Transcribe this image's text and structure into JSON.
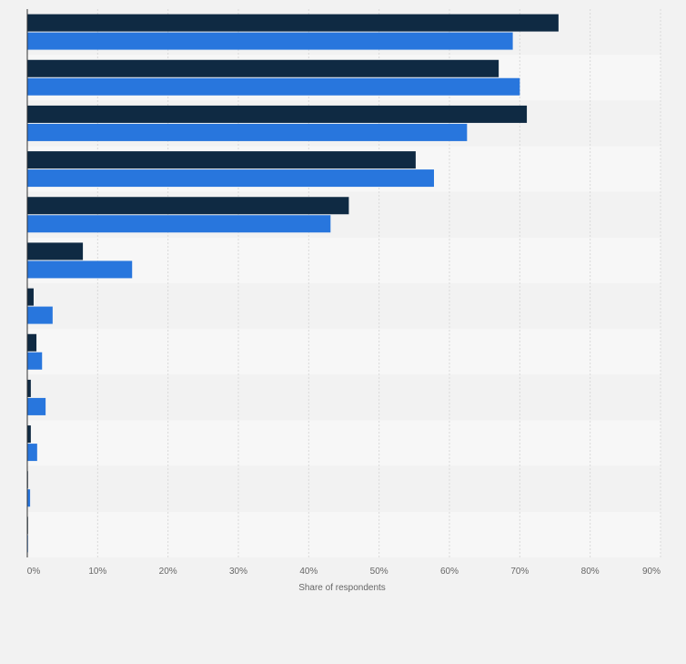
{
  "chart_data": {
    "type": "bar",
    "orientation": "horizontal",
    "title": "",
    "xlabel": "Share of respondents",
    "ylabel": "",
    "xlim": [
      0,
      90
    ],
    "x_ticks": [
      0,
      10,
      20,
      30,
      40,
      50,
      60,
      70,
      80,
      90
    ],
    "x_tick_labels": [
      "0%",
      "10%",
      "20%",
      "30%",
      "40%",
      "50%",
      "60%",
      "70%",
      "80%",
      "90%"
    ],
    "grid": true,
    "legend": "none",
    "categories": [
      "",
      "",
      "",
      "",
      "",
      "",
      "",
      "",
      "",
      "",
      "",
      ""
    ],
    "series": [
      {
        "color": "#0f2a43",
        "values": [
          75.5,
          67,
          71,
          55.2,
          45.7,
          7.9,
          0.9,
          1.3,
          0.5,
          0.5,
          0.1,
          0.1
        ]
      },
      {
        "color": "#2876dd",
        "values": [
          69,
          70,
          62.5,
          57.8,
          43.1,
          14.9,
          3.6,
          2.1,
          2.6,
          1.4,
          0.4,
          0.1
        ]
      }
    ]
  }
}
